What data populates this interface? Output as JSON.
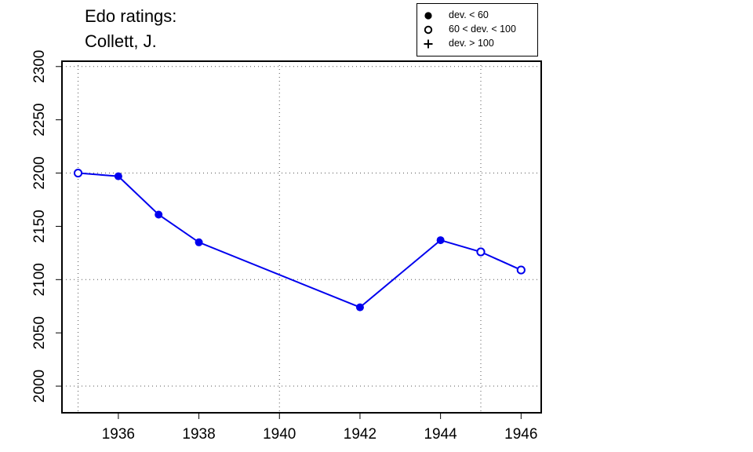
{
  "chart_data": {
    "type": "line",
    "title_lines": [
      "Edo ratings:",
      "Collett, J."
    ],
    "xlabel": "",
    "ylabel": "",
    "xlim": [
      1934.6,
      1946.5
    ],
    "ylim": [
      1975,
      2305
    ],
    "x_ticks": [
      1936,
      1938,
      1940,
      1942,
      1944,
      1946
    ],
    "y_ticks": [
      2000,
      2050,
      2100,
      2150,
      2200,
      2250,
      2300
    ],
    "grid_x": [
      1935,
      1940,
      1945
    ],
    "grid_y": [
      2000,
      2100,
      2200,
      2300
    ],
    "grid": true,
    "line_color": "#0000ee",
    "points": [
      {
        "x": 1935,
        "y": 2200,
        "marker": "open"
      },
      {
        "x": 1936,
        "y": 2197,
        "marker": "filled"
      },
      {
        "x": 1937,
        "y": 2161,
        "marker": "filled"
      },
      {
        "x": 1938,
        "y": 2135,
        "marker": "filled"
      },
      {
        "x": 1942,
        "y": 2074,
        "marker": "filled"
      },
      {
        "x": 1944,
        "y": 2137,
        "marker": "filled"
      },
      {
        "x": 1945,
        "y": 2126,
        "marker": "open"
      },
      {
        "x": 1946,
        "y": 2109,
        "marker": "open"
      }
    ],
    "legend": {
      "position": "top-right",
      "entries": [
        {
          "symbol": "filled",
          "label": "dev. < 60"
        },
        {
          "symbol": "open",
          "label": "60 < dev. < 100"
        },
        {
          "symbol": "plus",
          "label": "dev. > 100"
        }
      ]
    }
  }
}
